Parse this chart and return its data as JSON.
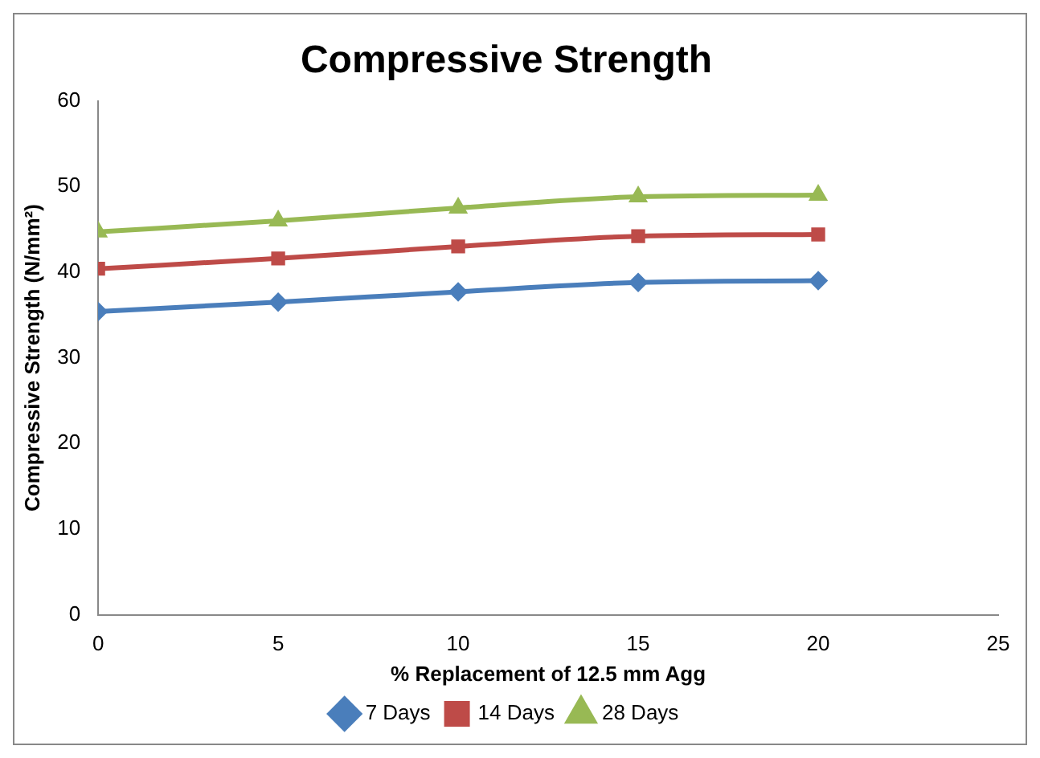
{
  "chart_data": {
    "type": "line",
    "title": "Compressive Strength",
    "xlabel": "% Replacement of 12.5 mm Agg",
    "ylabel": "Compressive Strength (N/mm²)",
    "x": [
      0,
      5,
      10,
      15,
      20
    ],
    "series": [
      {
        "name": "7 Days",
        "color": "#4a7ebb",
        "marker": "diamond",
        "values": [
          35.4,
          36.5,
          37.7,
          38.8,
          39.0
        ]
      },
      {
        "name": "14 Days",
        "color": "#be4b48",
        "marker": "square",
        "values": [
          40.4,
          41.6,
          43.0,
          44.2,
          44.4
        ]
      },
      {
        "name": "28 Days",
        "color": "#98b954",
        "marker": "triangle",
        "values": [
          44.7,
          46.0,
          47.5,
          48.8,
          49.0
        ]
      }
    ],
    "xlim": [
      0,
      25
    ],
    "xticks": [
      0,
      5,
      10,
      15,
      20,
      25
    ],
    "ylim": [
      0,
      60
    ],
    "yticks": [
      0,
      10,
      20,
      30,
      40,
      50,
      60
    ],
    "grid": false,
    "legend": "bottom"
  }
}
